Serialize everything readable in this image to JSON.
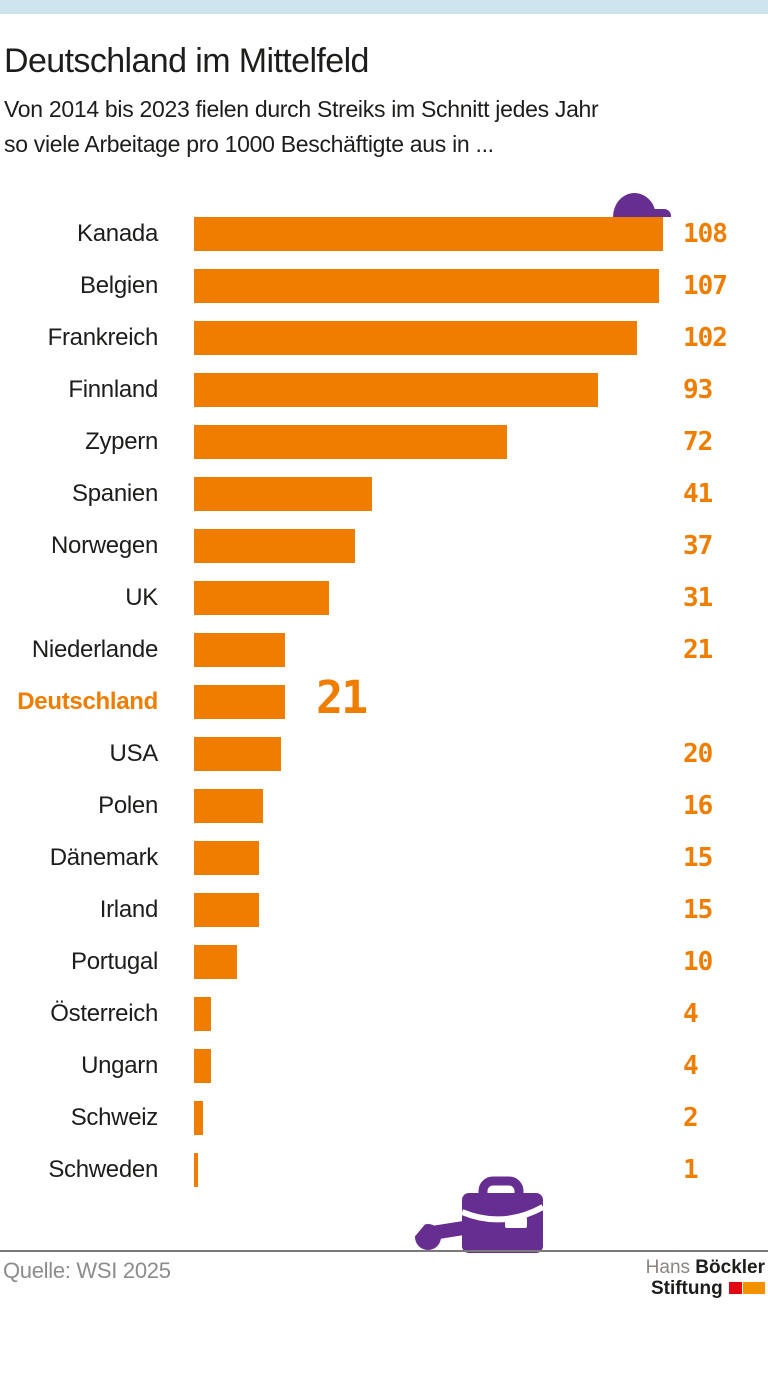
{
  "header": {
    "title": "Deutschland im Mittelfeld",
    "subtitle_line1": "Von 2014 bis 2023 fielen durch Streiks im Schnitt jedes Jahr",
    "subtitle_line2": "so viele Arbeitage pro 1000 Beschäftigte aus in ..."
  },
  "chart_data": {
    "type": "bar",
    "orientation": "horizontal",
    "title": "Deutschland im Mittelfeld",
    "subtitle": "Von 2014 bis 2023 fielen durch Streiks im Schnitt jedes Jahr so viele Arbeitage pro 1000 Beschäftigte aus in ...",
    "categories": [
      "Kanada",
      "Belgien",
      "Frankreich",
      "Finnland",
      "Zypern",
      "Spanien",
      "Norwegen",
      "UK",
      "Niederlande",
      "Deutschland",
      "USA",
      "Polen",
      "Dänemark",
      "Irland",
      "Portugal",
      "Österreich",
      "Ungarn",
      "Schweiz",
      "Schweden"
    ],
    "values": [
      108,
      107,
      102,
      93,
      72,
      41,
      37,
      31,
      21,
      21,
      20,
      16,
      15,
      15,
      10,
      4,
      4,
      2,
      1
    ],
    "xlim": [
      0,
      108
    ],
    "value_labels": [
      "108",
      "107",
      "102",
      "93",
      "72",
      "41",
      "37",
      "31",
      "21",
      "21",
      "20",
      "16",
      "15",
      "15",
      "10",
      "4",
      "4",
      "2",
      "1"
    ],
    "highlight_category": "Deutschland",
    "highlight_index": 9,
    "grid": false,
    "legend": false,
    "bar_color": "#ee7d00",
    "highlight_label_color": "#ee7d00"
  },
  "icons": {
    "hard_hat": "hard-hat-icon",
    "briefcase_wrench": "briefcase-wrench-icon"
  },
  "footer": {
    "source": "Quelle: WSI 2025",
    "logo_word1": "Hans",
    "logo_word2": "Böckler",
    "logo_word3": "Stiftung"
  },
  "colors": {
    "accent_orange": "#ee7d00",
    "accent_purple": "#662e91",
    "topbar_blue": "#cde4ef",
    "divider_gray": "#7a7a7a",
    "source_gray": "#8c8c8c",
    "logo_red": "#e30613",
    "logo_orange": "#f39200",
    "text_black": "#1d1d1b"
  }
}
